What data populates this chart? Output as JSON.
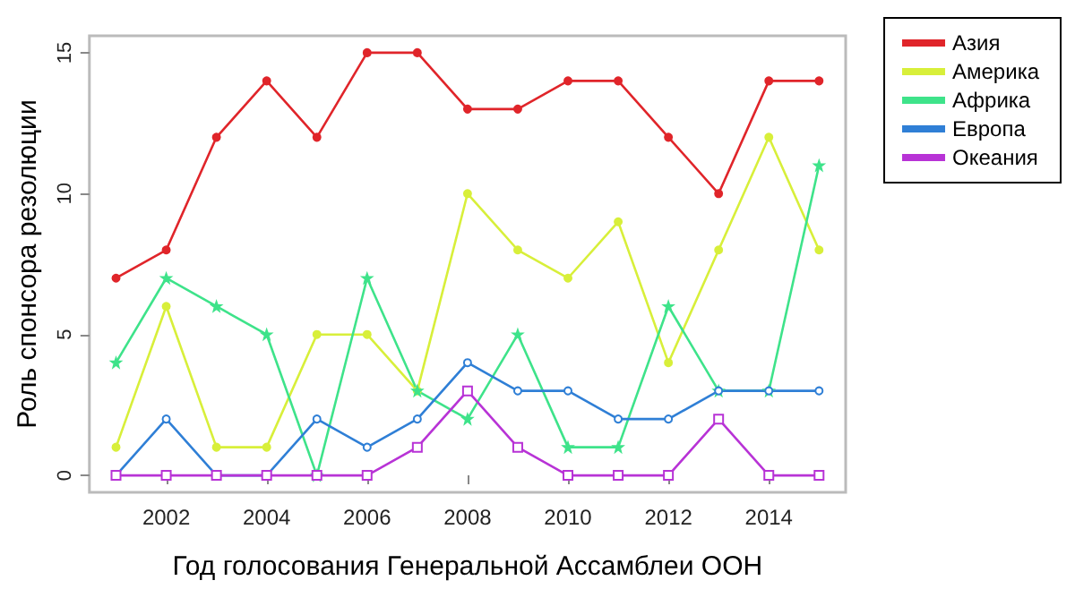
{
  "chart_data": {
    "type": "line",
    "xlabel": "Год голосования Генеральной Ассамблеи ООН",
    "ylabel": "Роль спонсора резолюции",
    "x": [
      2001,
      2002,
      2003,
      2004,
      2005,
      2006,
      2007,
      2008,
      2009,
      2010,
      2011,
      2012,
      2013,
      2014,
      2015
    ],
    "series": [
      {
        "name": "Азия",
        "color": "#e0252a",
        "marker": "circle",
        "values": [
          7,
          8,
          12,
          14,
          12,
          15,
          15,
          13,
          13,
          14,
          14,
          12,
          10,
          14,
          14
        ]
      },
      {
        "name": "Америка",
        "color": "#d8ef3a",
        "marker": "circle",
        "values": [
          1,
          6,
          1,
          1,
          5,
          5,
          3,
          10,
          8,
          7,
          9,
          4,
          8,
          12,
          8
        ]
      },
      {
        "name": "Африка",
        "color": "#3ee38a",
        "marker": "star",
        "values": [
          4,
          7,
          6,
          5,
          0,
          7,
          3,
          2,
          5,
          1,
          1,
          6,
          3,
          3,
          11
        ]
      },
      {
        "name": "Европа",
        "color": "#2f7fd6",
        "marker": "circle",
        "values": [
          0,
          2,
          0,
          0,
          2,
          1,
          2,
          4,
          3,
          3,
          2,
          2,
          3,
          3,
          3
        ]
      },
      {
        "name": "Океания",
        "color": "#b833d6",
        "marker": "square",
        "values": [
          0,
          0,
          0,
          0,
          0,
          0,
          1,
          3,
          1,
          0,
          0,
          0,
          2,
          0,
          0
        ]
      }
    ],
    "xlim": [
      2000.47,
      2015.53
    ],
    "xticks": [
      2002,
      2004,
      2006,
      2008,
      2010,
      2012,
      2014
    ],
    "ylim": [
      -0.6,
      15.6
    ],
    "yticks": [
      0,
      5,
      10,
      15
    ],
    "grid": false,
    "legend": "top right",
    "line_style": "solid"
  }
}
